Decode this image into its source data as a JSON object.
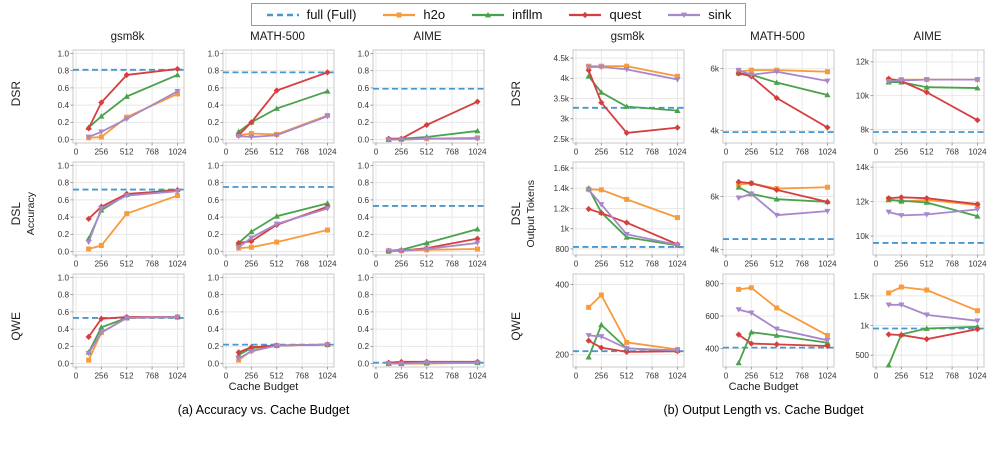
{
  "legend": {
    "items": [
      {
        "key": "full",
        "label": "full (Full)",
        "color": "#4a97ce",
        "marker": "dash"
      },
      {
        "key": "h2o",
        "label": "h2o",
        "color": "#f79b3d",
        "marker": "square"
      },
      {
        "key": "infllm",
        "label": "infllm",
        "color": "#4aa24c",
        "marker": "triangle-up"
      },
      {
        "key": "quest",
        "label": "quest",
        "color": "#d63f3f",
        "marker": "diamond"
      },
      {
        "key": "sink",
        "label": "sink",
        "color": "#a987cb",
        "marker": "triangle-down"
      }
    ]
  },
  "rows": [
    "DSR",
    "DSL",
    "QWE"
  ],
  "cols": [
    "gsm8k",
    "MATH-500",
    "AIME"
  ],
  "axis": {
    "xlabel": "Cache Budget",
    "a_ylabel": "Accuracy",
    "b_ylabel": "Output Tokens"
  },
  "captions": {
    "a": "(a) Accuracy vs. Cache Budget",
    "b": "(b) Output Length vs. Cache Budget"
  },
  "x_axis": {
    "points": [
      128,
      256,
      512,
      1024
    ],
    "ticks": [
      0,
      256,
      512,
      768,
      1024
    ],
    "tick_labels": [
      "0",
      "256",
      "512",
      "768",
      "1024"
    ],
    "lim": [
      -30,
      1090
    ]
  },
  "chart_data": [
    {
      "panel": "a",
      "row": "DSR",
      "col": "gsm8k",
      "type": "line",
      "ylim": [
        -0.04,
        1.04
      ],
      "yticks": [
        0,
        0.2,
        0.4,
        0.6,
        0.8,
        1.0
      ],
      "ytick_labels": [
        "0.0",
        "0.2",
        "0.4",
        "0.6",
        "0.8",
        "1.0"
      ],
      "full": 0.81,
      "series": {
        "h2o": [
          0.02,
          0.03,
          0.26,
          0.53
        ],
        "infllm": [
          0.14,
          0.27,
          0.5,
          0.75
        ],
        "quest": [
          0.13,
          0.43,
          0.75,
          0.82
        ],
        "sink": [
          0.03,
          0.09,
          0.24,
          0.56
        ]
      }
    },
    {
      "panel": "a",
      "row": "DSR",
      "col": "MATH-500",
      "type": "line",
      "ylim": [
        -0.04,
        1.04
      ],
      "yticks": [
        0,
        0.2,
        0.4,
        0.6,
        0.8,
        1.0
      ],
      "ytick_labels": [
        "0.0",
        "0.2",
        "0.4",
        "0.6",
        "0.8",
        "1.0"
      ],
      "full": 0.78,
      "series": {
        "h2o": [
          0.05,
          0.07,
          0.06,
          0.28
        ],
        "infllm": [
          0.09,
          0.2,
          0.36,
          0.56
        ],
        "quest": [
          0.05,
          0.2,
          0.57,
          0.78
        ],
        "sink": [
          0.04,
          0.03,
          0.05,
          0.27
        ]
      }
    },
    {
      "panel": "a",
      "row": "DSR",
      "col": "AIME",
      "type": "line",
      "ylim": [
        -0.04,
        1.04
      ],
      "yticks": [
        0,
        0.2,
        0.4,
        0.6,
        0.8,
        1.0
      ],
      "ytick_labels": [
        "0.0",
        "0.2",
        "0.4",
        "0.6",
        "0.8",
        "1.0"
      ],
      "full": 0.59,
      "series": {
        "h2o": [
          0.0,
          0.0,
          0.01,
          0.02
        ],
        "infllm": [
          0.0,
          0.01,
          0.03,
          0.1
        ],
        "quest": [
          0.01,
          0.01,
          0.17,
          0.44
        ],
        "sink": [
          0.0,
          0.0,
          0.01,
          0.01
        ]
      }
    },
    {
      "panel": "a",
      "row": "DSL",
      "col": "gsm8k",
      "type": "line",
      "ylim": [
        -0.04,
        1.04
      ],
      "yticks": [
        0,
        0.2,
        0.4,
        0.6,
        0.8,
        1.0
      ],
      "ytick_labels": [
        "0.0",
        "0.2",
        "0.4",
        "0.6",
        "0.8",
        "1.0"
      ],
      "full": 0.72,
      "series": {
        "h2o": [
          0.03,
          0.07,
          0.44,
          0.65
        ],
        "infllm": [
          0.15,
          0.48,
          0.66,
          0.72
        ],
        "quest": [
          0.38,
          0.52,
          0.67,
          0.71
        ],
        "sink": [
          0.11,
          0.5,
          0.65,
          0.7
        ]
      }
    },
    {
      "panel": "a",
      "row": "DSL",
      "col": "MATH-500",
      "type": "line",
      "ylim": [
        -0.04,
        1.04
      ],
      "yticks": [
        0,
        0.2,
        0.4,
        0.6,
        0.8,
        1.0
      ],
      "ytick_labels": [
        "0.0",
        "0.2",
        "0.4",
        "0.6",
        "0.8",
        "1.0"
      ],
      "full": 0.75,
      "series": {
        "h2o": [
          0.04,
          0.05,
          0.11,
          0.25
        ],
        "infllm": [
          0.1,
          0.23,
          0.41,
          0.56
        ],
        "quest": [
          0.1,
          0.12,
          0.31,
          0.52
        ],
        "sink": [
          0.05,
          0.16,
          0.32,
          0.5
        ]
      }
    },
    {
      "panel": "a",
      "row": "DSL",
      "col": "AIME",
      "type": "line",
      "ylim": [
        -0.04,
        1.04
      ],
      "yticks": [
        0,
        0.2,
        0.4,
        0.6,
        0.8,
        1.0
      ],
      "ytick_labels": [
        "0.0",
        "0.2",
        "0.4",
        "0.6",
        "0.8",
        "1.0"
      ],
      "full": 0.53,
      "series": {
        "h2o": [
          0.0,
          0.01,
          0.02,
          0.03
        ],
        "infllm": [
          0.01,
          0.02,
          0.1,
          0.26
        ],
        "quest": [
          0.01,
          0.01,
          0.04,
          0.15
        ],
        "sink": [
          0.01,
          0.01,
          0.03,
          0.1
        ]
      }
    },
    {
      "panel": "a",
      "row": "QWE",
      "col": "gsm8k",
      "type": "line",
      "ylim": [
        -0.04,
        1.04
      ],
      "yticks": [
        0,
        0.2,
        0.4,
        0.6,
        0.8,
        1.0
      ],
      "ytick_labels": [
        "0.0",
        "0.2",
        "0.4",
        "0.6",
        "0.8",
        "1.0"
      ],
      "full": 0.53,
      "series": {
        "h2o": [
          0.04,
          0.36,
          0.53,
          0.54
        ],
        "infllm": [
          0.13,
          0.42,
          0.53,
          0.54
        ],
        "quest": [
          0.31,
          0.52,
          0.54,
          0.54
        ],
        "sink": [
          0.12,
          0.36,
          0.53,
          0.54
        ]
      }
    },
    {
      "panel": "a",
      "row": "QWE",
      "col": "MATH-500",
      "type": "line",
      "ylim": [
        -0.04,
        1.04
      ],
      "yticks": [
        0,
        0.2,
        0.4,
        0.6,
        0.8,
        1.0
      ],
      "ytick_labels": [
        "0.0",
        "0.2",
        "0.4",
        "0.6",
        "0.8",
        "1.0"
      ],
      "full": 0.22,
      "series": {
        "h2o": [
          0.04,
          0.15,
          0.21,
          0.22
        ],
        "infllm": [
          0.1,
          0.18,
          0.21,
          0.22
        ],
        "quest": [
          0.13,
          0.19,
          0.21,
          0.22
        ],
        "sink": [
          0.06,
          0.14,
          0.21,
          0.22
        ]
      }
    },
    {
      "panel": "a",
      "row": "QWE",
      "col": "AIME",
      "type": "line",
      "ylim": [
        -0.04,
        1.04
      ],
      "yticks": [
        0,
        0.2,
        0.4,
        0.6,
        0.8,
        1.0
      ],
      "ytick_labels": [
        "0.0",
        "0.2",
        "0.4",
        "0.6",
        "0.8",
        "1.0"
      ],
      "full": 0.01,
      "series": {
        "h2o": [
          0.0,
          0.0,
          0.0,
          0.01
        ],
        "infllm": [
          0.0,
          0.0,
          0.01,
          0.01
        ],
        "quest": [
          0.01,
          0.02,
          0.02,
          0.02
        ],
        "sink": [
          0.0,
          0.0,
          0.01,
          0.01
        ]
      }
    },
    {
      "panel": "b",
      "row": "DSR",
      "col": "gsm8k",
      "type": "line",
      "ylim": [
        2400,
        4700
      ],
      "yticks": [
        2500,
        3000,
        3500,
        4000,
        4500
      ],
      "ytick_labels": [
        "2.5k",
        "3k",
        "3.5k",
        "4k",
        "4.5k"
      ],
      "full": 3270,
      "series": {
        "h2o": [
          4300,
          4300,
          4300,
          4050
        ],
        "infllm": [
          4050,
          3650,
          3300,
          3200
        ],
        "quest": [
          4200,
          3400,
          2650,
          2780
        ],
        "sink": [
          4280,
          4280,
          4220,
          3970
        ]
      }
    },
    {
      "panel": "b",
      "row": "DSR",
      "col": "MATH-500",
      "type": "line",
      "ylim": [
        3600,
        6600
      ],
      "yticks": [
        4000,
        6000
      ],
      "ytick_labels": [
        "4k",
        "6k"
      ],
      "full": 3950,
      "series": {
        "h2o": [
          5900,
          5950,
          5950,
          5900
        ],
        "infllm": [
          5850,
          5800,
          5550,
          5150
        ],
        "quest": [
          5850,
          5750,
          5050,
          4100
        ],
        "sink": [
          5950,
          5800,
          5900,
          5600
        ]
      }
    },
    {
      "panel": "b",
      "row": "DSR",
      "col": "AIME",
      "type": "line",
      "ylim": [
        7200,
        12700
      ],
      "yticks": [
        8000,
        10000,
        12000
      ],
      "ytick_labels": [
        "8k",
        "10k",
        "12k"
      ],
      "full": 7850,
      "series": {
        "h2o": [
          10950,
          10950,
          10950,
          10950
        ],
        "infllm": [
          10800,
          10800,
          10500,
          10450
        ],
        "quest": [
          11000,
          10850,
          10200,
          8550
        ],
        "sink": [
          10850,
          10900,
          10950,
          10950
        ]
      }
    },
    {
      "panel": "b",
      "row": "DSL",
      "col": "gsm8k",
      "type": "line",
      "ylim": [
        740,
        1660
      ],
      "yticks": [
        800,
        1000,
        1200,
        1400,
        1600
      ],
      "ytick_labels": [
        "800",
        "1k",
        "1.2k",
        "1.4k",
        "1.6k"
      ],
      "full": 820,
      "series": {
        "h2o": [
          1390,
          1385,
          1290,
          1110
        ],
        "infllm": [
          1400,
          1160,
          915,
          835
        ],
        "quest": [
          1195,
          1155,
          1060,
          845
        ],
        "sink": [
          1385,
          1240,
          945,
          840
        ]
      }
    },
    {
      "panel": "b",
      "row": "DSL",
      "col": "MATH-500",
      "type": "line",
      "ylim": [
        3800,
        7300
      ],
      "yticks": [
        4000,
        6000
      ],
      "ytick_labels": [
        "4k",
        "6k"
      ],
      "full": 4400,
      "series": {
        "h2o": [
          6450,
          6500,
          6300,
          6350
        ],
        "infllm": [
          6350,
          6100,
          5900,
          5800
        ],
        "quest": [
          6550,
          6500,
          6250,
          5800
        ],
        "sink": [
          5950,
          6100,
          5300,
          5450
        ]
      }
    },
    {
      "panel": "b",
      "row": "DSL",
      "col": "AIME",
      "type": "line",
      "ylim": [
        8900,
        14300
      ],
      "yticks": [
        10000,
        12000,
        14000
      ],
      "ytick_labels": [
        "10k",
        "12k",
        "14k"
      ],
      "full": 9600,
      "series": {
        "h2o": [
          12150,
          12000,
          12100,
          11800
        ],
        "infllm": [
          12100,
          12050,
          11950,
          11150
        ],
        "quest": [
          12200,
          12250,
          12200,
          11850
        ],
        "sink": [
          11400,
          11200,
          11250,
          11550
        ]
      }
    },
    {
      "panel": "b",
      "row": "QWE",
      "col": "gsm8k",
      "type": "line",
      "ylim": [
        165,
        430
      ],
      "yticks": [
        200,
        400
      ],
      "ytick_labels": [
        "200",
        "400"
      ],
      "full": 210,
      "series": {
        "h2o": [
          335,
          370,
          235,
          215
        ],
        "infllm": [
          193,
          285,
          218,
          212
        ],
        "quest": [
          240,
          220,
          208,
          210
        ],
        "sink": [
          255,
          252,
          218,
          212
        ]
      }
    },
    {
      "panel": "b",
      "row": "QWE",
      "col": "MATH-500",
      "type": "line",
      "ylim": [
        285,
        860
      ],
      "yticks": [
        400,
        600,
        800
      ],
      "ytick_labels": [
        "400",
        "600",
        "800"
      ],
      "full": 405,
      "series": {
        "h2o": [
          765,
          775,
          650,
          480
        ],
        "infllm": [
          310,
          500,
          480,
          435
        ],
        "quest": [
          485,
          430,
          425,
          415
        ],
        "sink": [
          640,
          620,
          520,
          450
        ]
      }
    },
    {
      "panel": "b",
      "row": "QWE",
      "col": "AIME",
      "type": "line",
      "ylim": [
        300,
        1870
      ],
      "yticks": [
        500,
        1000,
        1500
      ],
      "ytick_labels": [
        "500",
        "1k",
        "1.5k"
      ],
      "full": 950,
      "series": {
        "h2o": [
          1550,
          1650,
          1600,
          1250
        ],
        "infllm": [
          330,
          850,
          950,
          980
        ],
        "quest": [
          850,
          840,
          770,
          940
        ],
        "sink": [
          1350,
          1350,
          1180,
          1080
        ]
      }
    }
  ]
}
